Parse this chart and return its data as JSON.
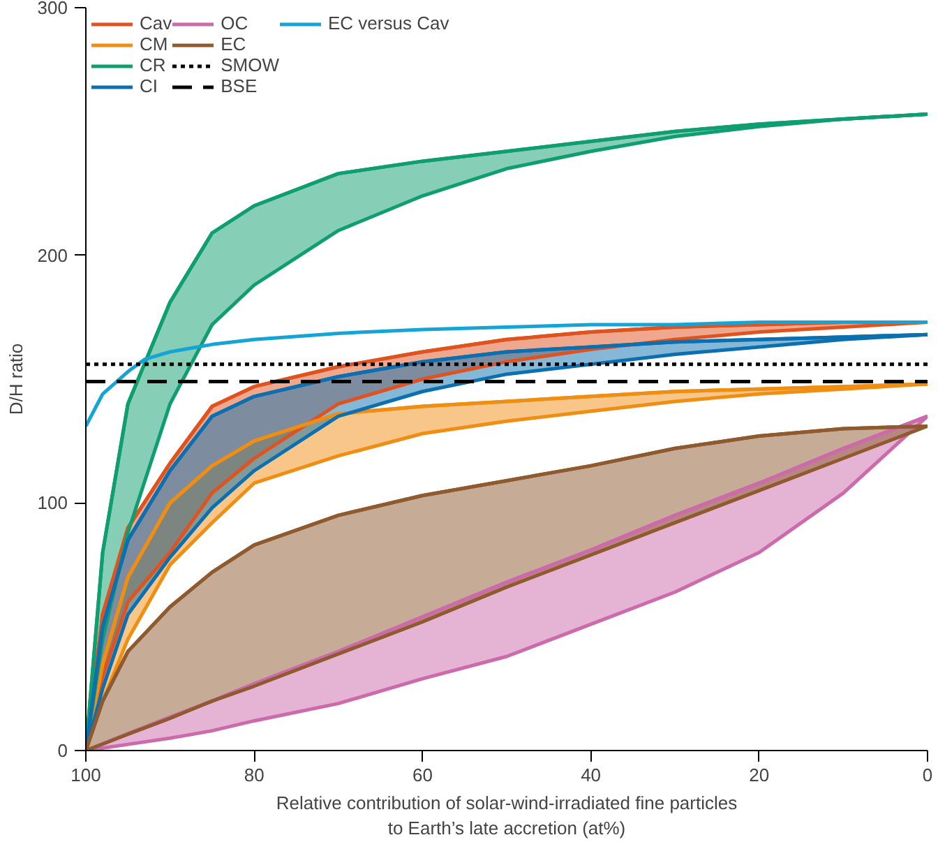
{
  "chart_data": {
    "type": "line",
    "xlabel": "Relative contribution of solar-wind-irradiated fine particles\nto Earth’s late accretion (at%)",
    "ylabel": "D/H ratio",
    "x": [
      100,
      98,
      95,
      90,
      85,
      80,
      70,
      60,
      50,
      40,
      30,
      20,
      10,
      0
    ],
    "xlim": [
      100,
      0
    ],
    "xticks": [
      100,
      80,
      60,
      40,
      20,
      0
    ],
    "ylim": [
      0,
      300
    ],
    "yticks": [
      0,
      100,
      200,
      300
    ],
    "grid": false,
    "legend": "top left",
    "series": [
      {
        "name": "Cav",
        "color": "#e0521e",
        "values": [
          0,
          55,
          90,
          116,
          139,
          147,
          155,
          161,
          166,
          169,
          171,
          172,
          173,
          173
        ],
        "upper": [
          0,
          55,
          90,
          116,
          139,
          147,
          155,
          161,
          166,
          169,
          171,
          172,
          173,
          173
        ],
        "lower": [
          0,
          30,
          60,
          80,
          104,
          118,
          140,
          150,
          157,
          162,
          166,
          169,
          171,
          173
        ]
      },
      {
        "name": "CM",
        "color": "#ef8e12",
        "values": [
          0,
          35,
          70,
          100,
          115,
          125,
          136,
          139,
          141,
          143,
          145,
          146,
          147,
          148
        ],
        "upper": [
          0,
          35,
          70,
          100,
          115,
          125,
          136,
          139,
          141,
          143,
          145,
          146,
          147,
          148
        ],
        "lower": [
          0,
          20,
          45,
          75,
          92,
          108,
          119,
          128,
          133,
          137,
          141,
          144,
          146,
          148
        ]
      },
      {
        "name": "CR",
        "color": "#0f9e70",
        "values": [
          0,
          80,
          140,
          181,
          209,
          220,
          233,
          238,
          242,
          246,
          250,
          253,
          255,
          257
        ],
        "upper": [
          0,
          80,
          140,
          181,
          209,
          220,
          233,
          238,
          242,
          246,
          250,
          253,
          255,
          257
        ],
        "lower": [
          0,
          45,
          88,
          140,
          172,
          188,
          210,
          224,
          235,
          242,
          248,
          252,
          255,
          257
        ]
      },
      {
        "name": "CI",
        "color": "#0b6fb0",
        "values": [
          0,
          50,
          85,
          113,
          135,
          143,
          151,
          157,
          161,
          163,
          165,
          166,
          167,
          168
        ],
        "upper": [
          0,
          50,
          85,
          113,
          135,
          143,
          151,
          157,
          161,
          163,
          165,
          166,
          167,
          168
        ],
        "lower": [
          0,
          25,
          55,
          78,
          98,
          113,
          135,
          145,
          152,
          156,
          160,
          163,
          166,
          168
        ]
      },
      {
        "name": "OC",
        "color": "#cc6aac",
        "values": [
          0,
          2.7,
          6.8,
          13.5,
          20,
          27,
          40,
          54,
          68,
          81,
          95,
          108,
          122,
          135
        ],
        "upper": [
          0,
          2.7,
          6.8,
          13.5,
          20,
          27,
          40,
          54,
          68,
          81,
          95,
          108,
          122,
          135
        ],
        "lower": [
          0,
          1,
          2.5,
          5,
          8,
          12,
          19,
          29,
          38,
          51,
          64,
          80,
          104,
          135
        ]
      },
      {
        "name": "EC",
        "color": "#8e5a2e",
        "values": [
          0,
          20,
          40,
          58,
          72,
          83,
          95,
          103,
          109,
          115,
          122,
          127,
          130,
          131
        ],
        "upper": [
          0,
          20,
          40,
          58,
          72,
          83,
          95,
          103,
          109,
          115,
          122,
          127,
          130,
          131
        ],
        "lower": [
          0,
          2.6,
          6.6,
          13,
          20,
          26,
          39,
          52,
          66,
          79,
          92,
          105,
          118,
          131
        ]
      },
      {
        "name": "EC versus Cav",
        "type": "line",
        "color": "#14a5d6",
        "x": [
          100,
          98,
          95,
          93,
          90,
          85,
          80,
          70,
          60,
          50,
          40,
          30,
          20,
          10,
          0
        ],
        "values": [
          131,
          144,
          153,
          158,
          161,
          164,
          166,
          168.5,
          170,
          171,
          172,
          172,
          173,
          173,
          173
        ]
      }
    ],
    "ref_lines": [
      {
        "axis": "y",
        "value": 156,
        "label": "SMOW",
        "color": "#000000",
        "line_style": "dotted"
      },
      {
        "axis": "y",
        "value": 149,
        "label": "BSE",
        "color": "#000000",
        "line_style": "dashed"
      }
    ]
  }
}
